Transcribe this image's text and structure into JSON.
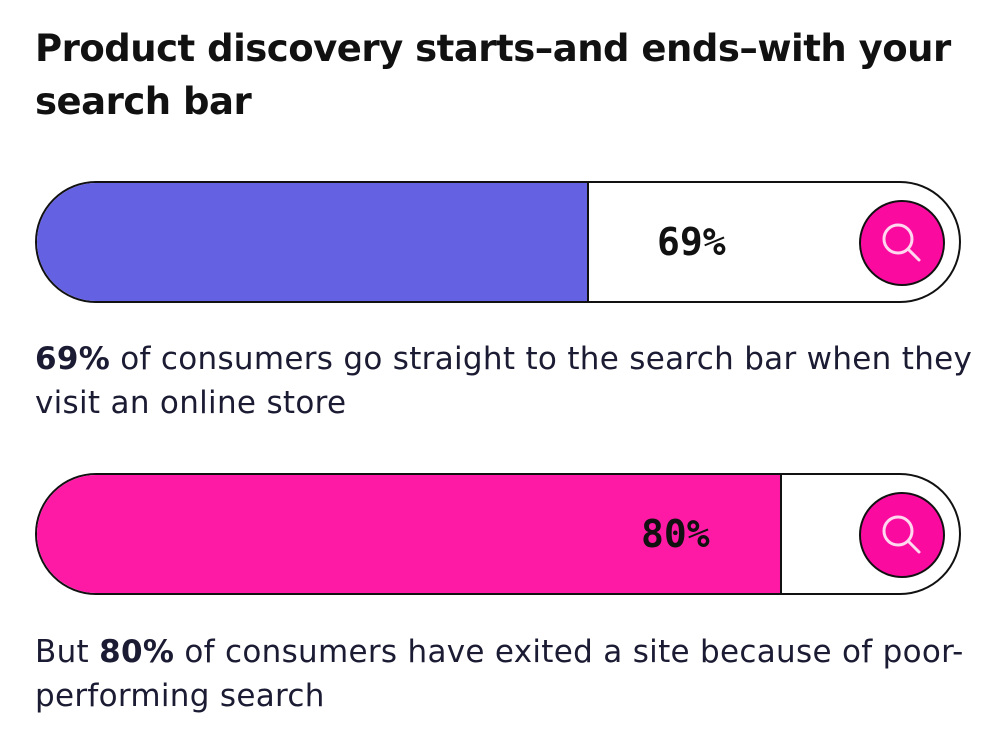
{
  "title": "Product discovery starts–and ends–with your search bar",
  "colors": {
    "bar1_fill": "#6461e3",
    "bar2_fill": "#ff1aa6",
    "search_button": "#fb0aa0",
    "text": "#1b1b33"
  },
  "chart_data": {
    "type": "bar",
    "title": "Product discovery starts–and ends–with your search bar",
    "series": [
      {
        "value": 69,
        "label": "69%"
      },
      {
        "value": 80,
        "label": "80%"
      }
    ],
    "ylim": [
      0,
      100
    ]
  },
  "stats": [
    {
      "label": "69%",
      "caption_prefix": "",
      "caption_bold": "69%",
      "caption_rest": " of consumers go straight to the search bar when they visit an online store",
      "icon": "search-icon"
    },
    {
      "label": "80%",
      "caption_prefix": "But ",
      "caption_bold": "80%",
      "caption_rest": " of consumers have exited a site because of poor-performing search",
      "icon": "search-icon"
    }
  ]
}
